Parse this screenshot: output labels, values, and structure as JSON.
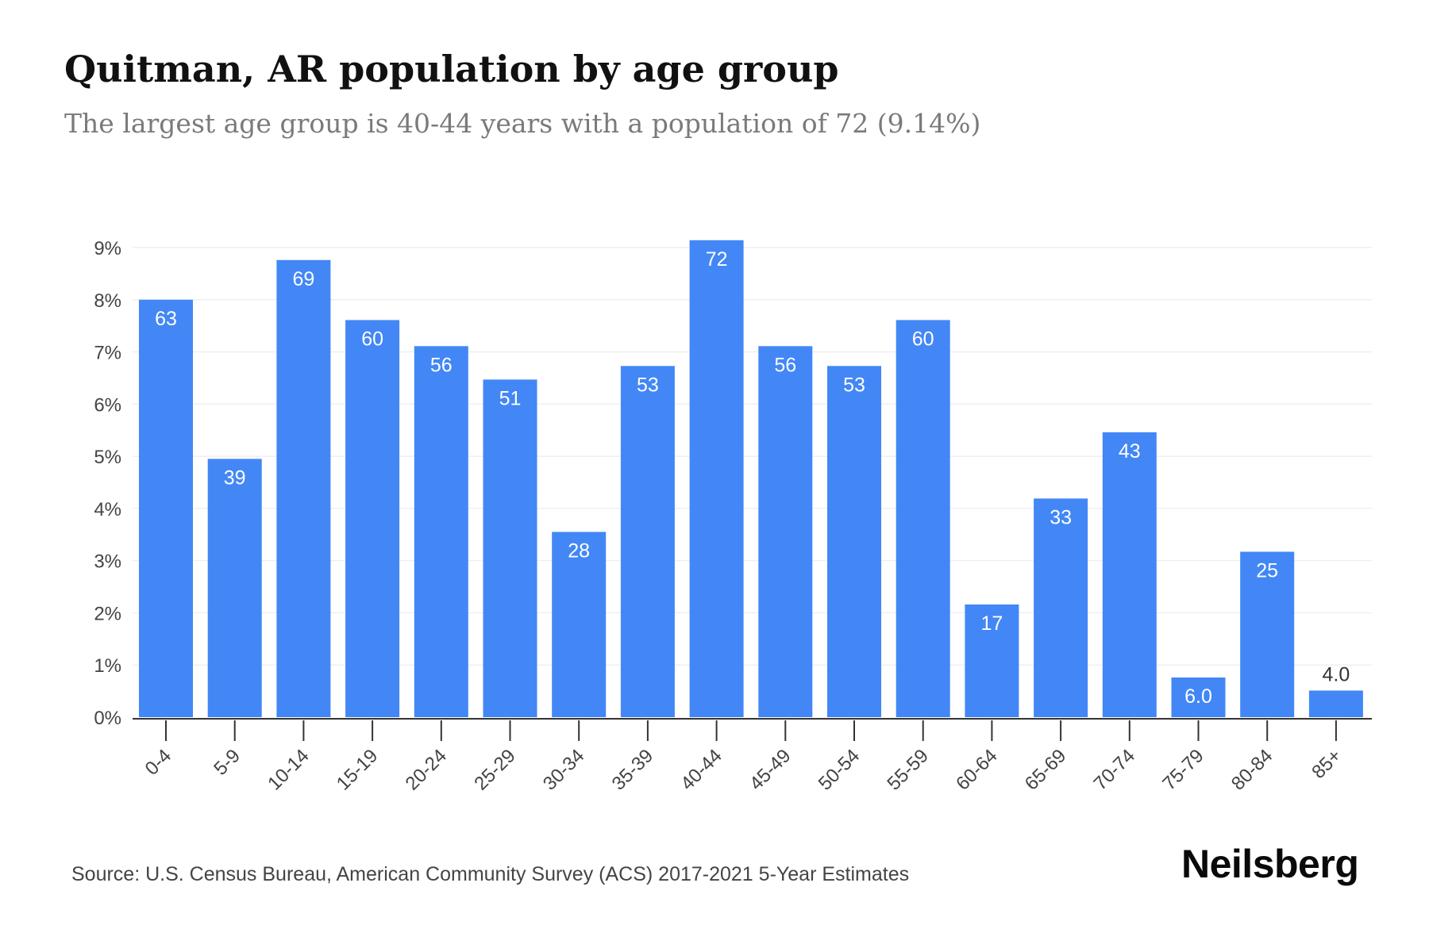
{
  "header": {
    "title": "Quitman, AR population by age group",
    "subtitle": "The largest age group is 40-44 years with a population of 72 (9.14%)"
  },
  "footer": {
    "source": "Source: U.S. Census Bureau, American Community Survey (ACS) 2017-2021 5-Year Estimates",
    "brand": "Neilsberg"
  },
  "colors": {
    "bar": "#4287f5",
    "grid": "#ececec",
    "axis": "#333333",
    "label_inside": "#ffffff",
    "label_outside": "#333333"
  },
  "chart_data": {
    "type": "bar",
    "title": "Quitman, AR population by age group",
    "xlabel": "",
    "ylabel": "",
    "ylim": [
      0,
      9
    ],
    "yticks": [
      "0%",
      "1%",
      "2%",
      "3%",
      "4%",
      "5%",
      "6%",
      "7%",
      "8%",
      "9%"
    ],
    "grid": true,
    "legend": "none",
    "categories": [
      "0-4",
      "5-9",
      "10-14",
      "15-19",
      "20-24",
      "25-29",
      "30-34",
      "35-39",
      "40-44",
      "45-49",
      "50-54",
      "55-59",
      "60-64",
      "65-69",
      "70-74",
      "75-79",
      "80-84",
      "85+"
    ],
    "values_percent": [
      8.0,
      4.95,
      8.76,
      7.61,
      7.11,
      6.47,
      3.55,
      6.73,
      9.14,
      7.11,
      6.73,
      7.61,
      2.16,
      4.19,
      5.46,
      0.76,
      3.17,
      0.51
    ],
    "data_labels": [
      "63",
      "39",
      "69",
      "60",
      "56",
      "51",
      "28",
      "53",
      "72",
      "56",
      "53",
      "60",
      "17",
      "33",
      "43",
      "6.0",
      "25",
      "4.0"
    ]
  }
}
